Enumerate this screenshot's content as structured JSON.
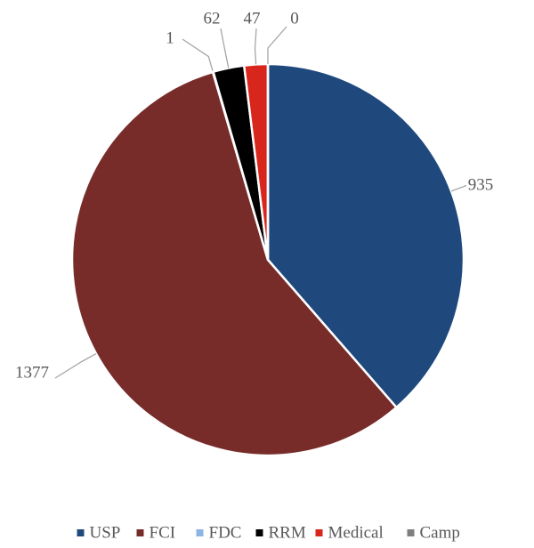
{
  "chart_data": {
    "type": "pie",
    "categories": [
      "USP",
      "FCI",
      "FDC",
      "RRM",
      "Medical",
      "Camp"
    ],
    "values": [
      935,
      1377,
      1,
      62,
      47,
      0
    ],
    "colors": [
      "#1f497d",
      "#772c2a",
      "#8db4e2",
      "#000000",
      "#d9261c",
      "#7f7f7f"
    ],
    "legend": "bottom"
  }
}
